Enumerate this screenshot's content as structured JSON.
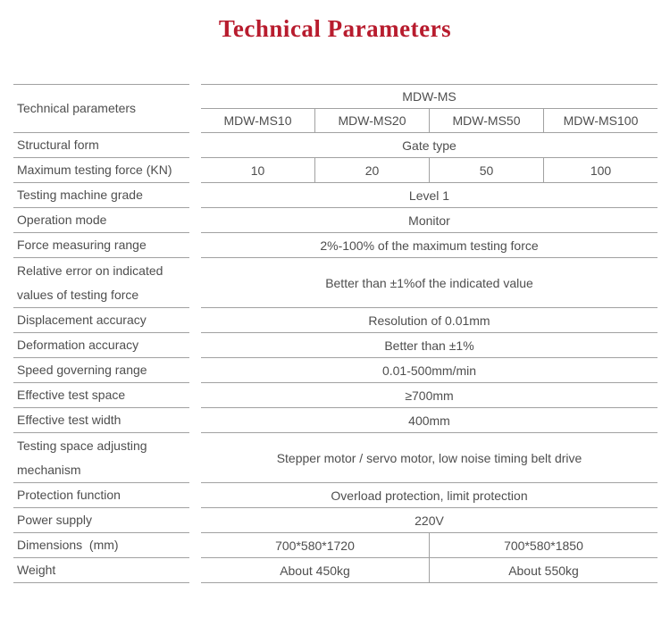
{
  "page": {
    "title": "Technical Parameters",
    "title_color": "#b81c2e",
    "border_color": "#a1a1a1",
    "text_color": "#4e4e4e"
  },
  "table": {
    "header": {
      "left_label": "Technical parameters",
      "series_label": "MDW-MS",
      "models": [
        "MDW-MS10",
        "MDW-MS20",
        "MDW-MS50",
        "MDW-MS100"
      ]
    },
    "rows": [
      {
        "label": "Structural form",
        "values": [
          "Gate type"
        ]
      },
      {
        "label": "Maximum testing force (KN)",
        "values": [
          "10",
          "20",
          "50",
          "100"
        ]
      },
      {
        "label": "Testing machine grade",
        "values": [
          "Level 1"
        ]
      },
      {
        "label": "Operation mode",
        "values": [
          "Monitor"
        ]
      },
      {
        "label": "Force measuring range",
        "values": [
          "2%-100% of the maximum testing force"
        ]
      },
      {
        "label": "Relative error on indicated\nvalues of testing force",
        "values": [
          "Better than ±1%of the indicated value"
        ]
      },
      {
        "label": "Displacement accuracy",
        "values": [
          "Resolution of 0.01mm"
        ]
      },
      {
        "label": "Deformation accuracy",
        "values": [
          "Better than ±1%"
        ]
      },
      {
        "label": "Speed governing range",
        "values": [
          "0.01-500mm/min"
        ]
      },
      {
        "label": "Effective test space",
        "values": [
          "≥700mm"
        ]
      },
      {
        "label": "Effective test width",
        "values": [
          "400mm"
        ]
      },
      {
        "label": "Testing space adjusting\nmechanism",
        "values": [
          "Stepper motor / servo motor, low noise timing belt drive"
        ]
      },
      {
        "label": "Protection function",
        "values": [
          "Overload protection, limit protection"
        ]
      },
      {
        "label": "Power supply",
        "values": [
          "220V"
        ]
      },
      {
        "label": "Dimensions  (mm)",
        "values": [
          "700*580*1720",
          "700*580*1850"
        ]
      },
      {
        "label": "Weight",
        "values": [
          "About 450kg",
          "About 550kg"
        ]
      }
    ]
  }
}
